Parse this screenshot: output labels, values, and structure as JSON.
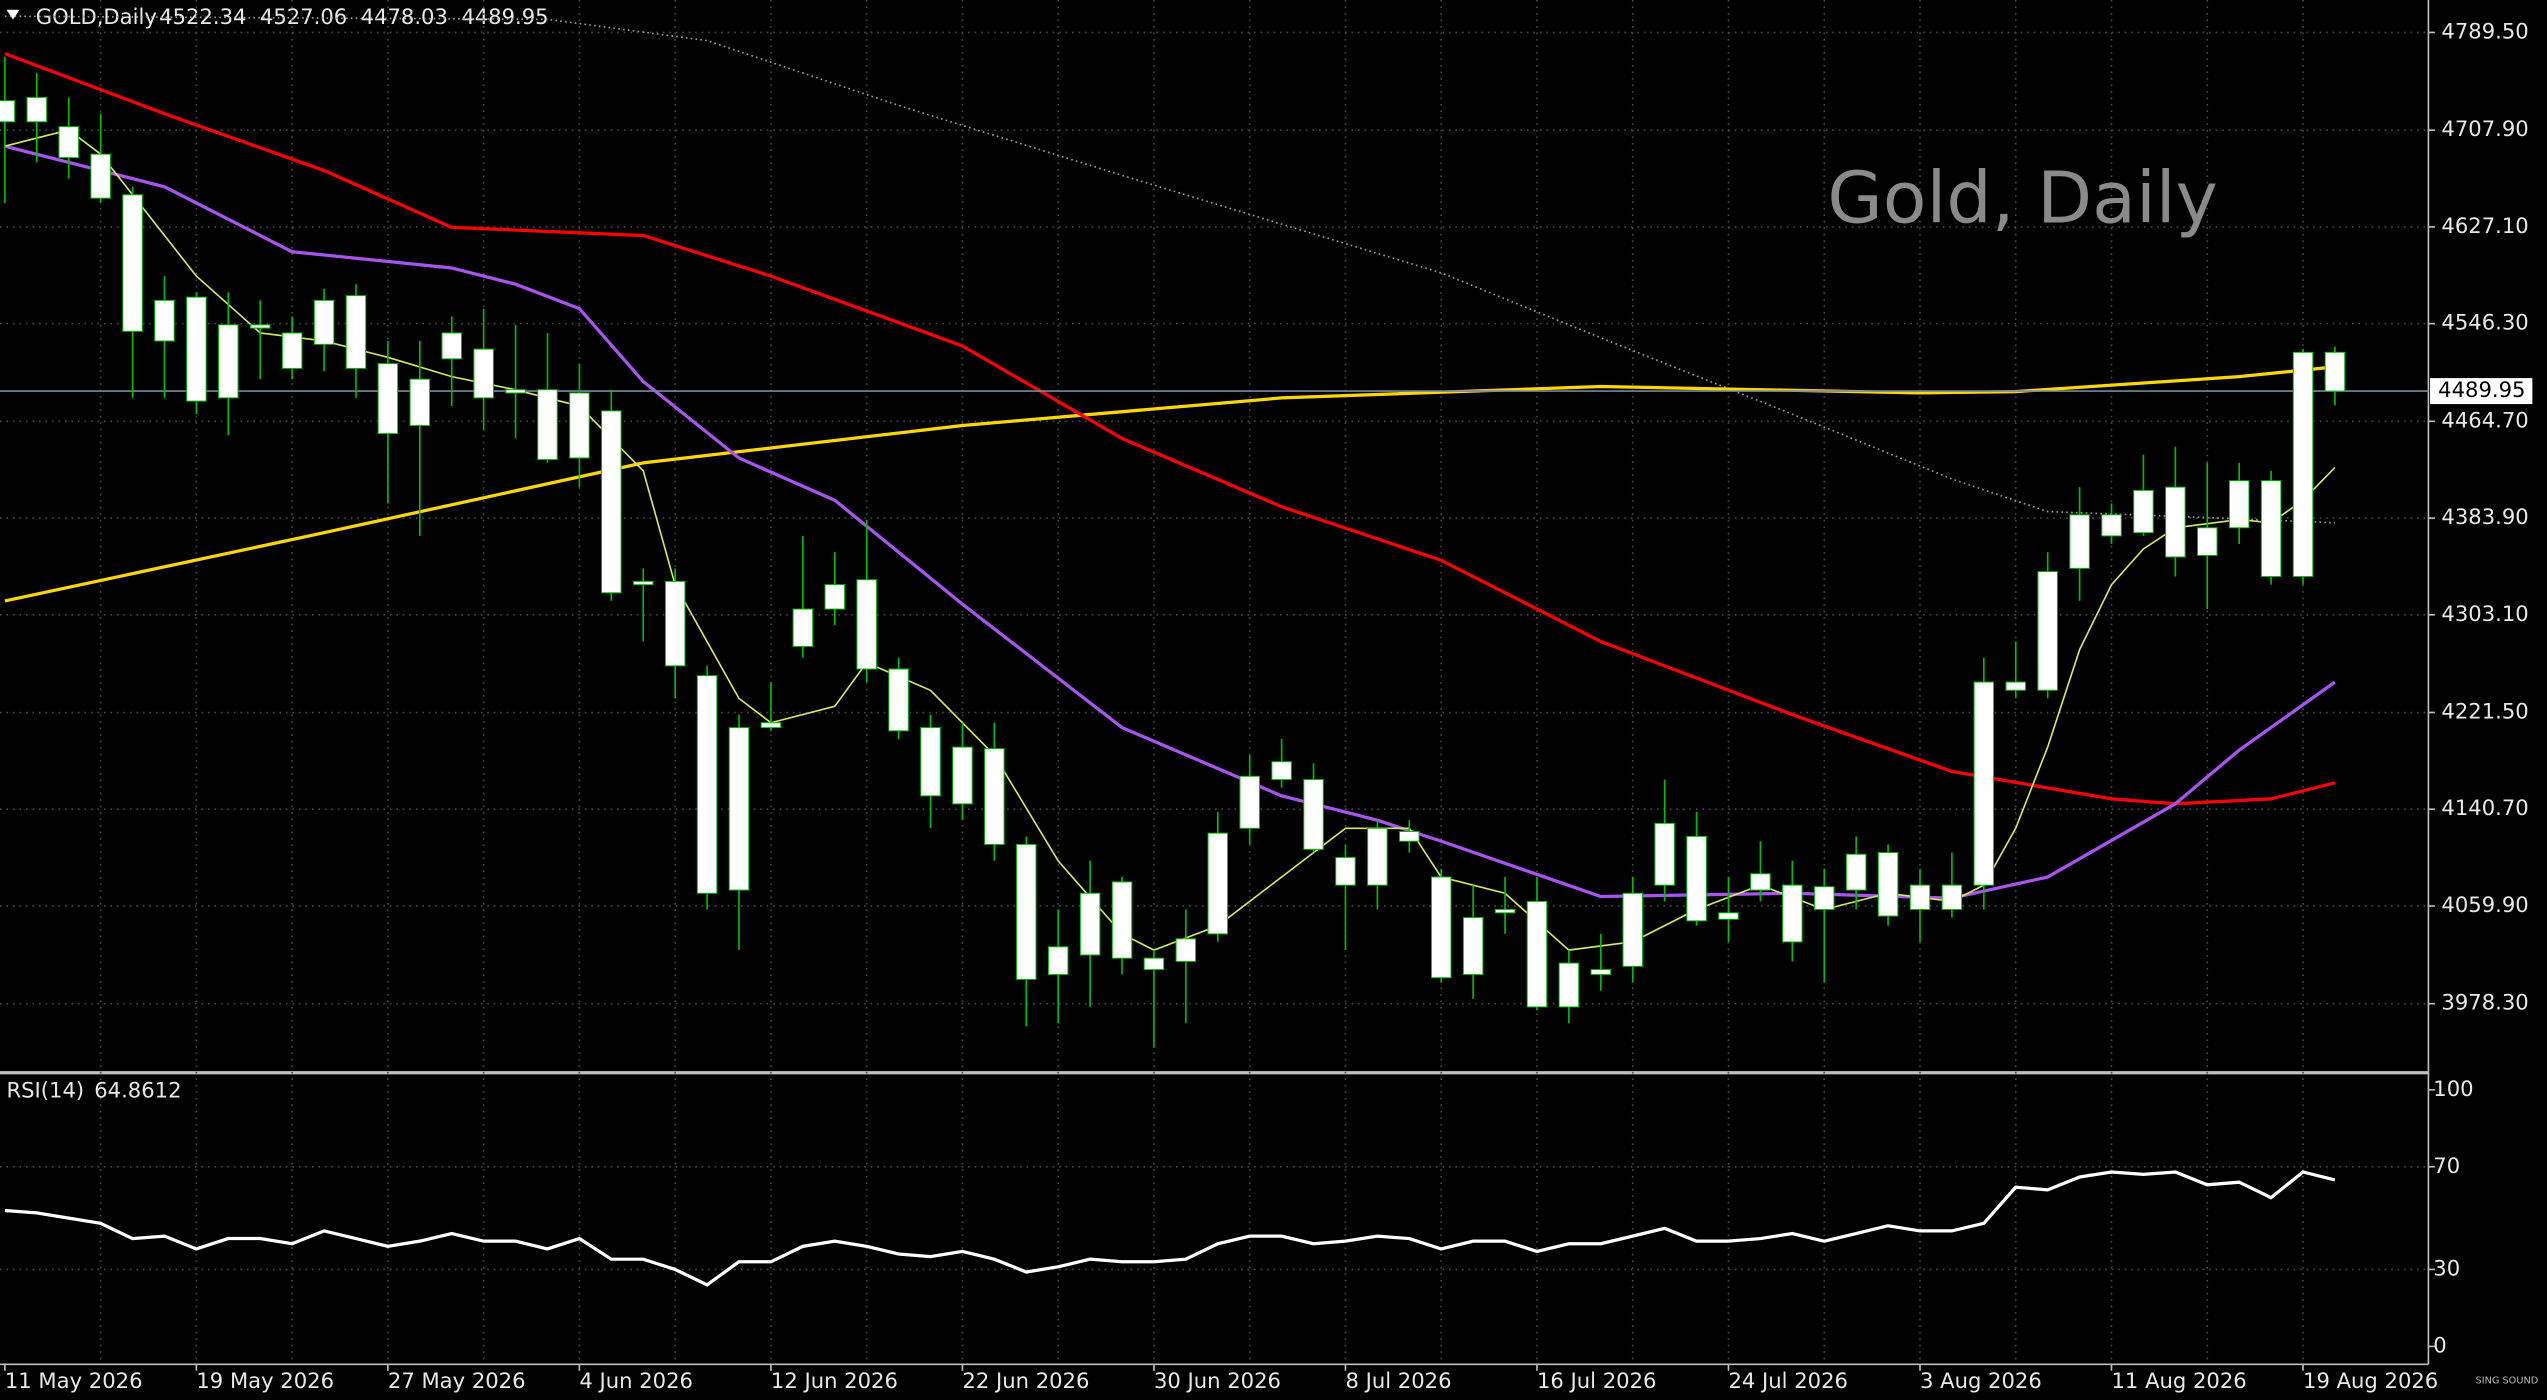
{
  "chart_data": {
    "type": "candlestick",
    "symbol": "GOLD,Daily",
    "watermark": "Gold, Daily",
    "logo": "SING SOUND",
    "categories": [
      "11 May 2026",
      null,
      null,
      null,
      null,
      null,
      "19 May 2026",
      null,
      null,
      null,
      null,
      null,
      "27 May 2026",
      null,
      null,
      null,
      null,
      null,
      "4 Jun 2026",
      null,
      null,
      null,
      null,
      null,
      "12 Jun 2026",
      null,
      null,
      null,
      null,
      null,
      "22 Jun 2026",
      null,
      null,
      null,
      null,
      null,
      "30 Jun 2026",
      null,
      null,
      null,
      null,
      null,
      "8 Jul 2026",
      null,
      null,
      null,
      null,
      null,
      "16 Jul 2026",
      null,
      null,
      null,
      null,
      null,
      "24 Jul 2026",
      null,
      null,
      null,
      null,
      null,
      "3 Aug 2026",
      null,
      null,
      null,
      null,
      null,
      "11 Aug 2026",
      null,
      null,
      null,
      null,
      null,
      "19 Aug 2026",
      null
    ],
    "open": [
      4732.5,
      4735.2,
      4710.8,
      4687.8,
      4653.9,
      4531.8,
      4568.4,
      4484.3,
      4542.6,
      4538.5,
      4529.0,
      4569.7,
      4512.9,
      4461.2,
      4516.9,
      4525.0,
      4488.4,
      4491.1,
      4434.1,
      4473.4,
      4331.0,
      4331.0,
      4252.3,
      4073.2,
      4213.0,
      4276.7,
      4307.9,
      4332.4,
      4257.8,
      4208.9,
      4145.2,
      4191.3,
      4111.3,
      4002.7,
      4019.0,
      4080.0,
      4016.3,
      4013.6,
      4036.6,
      4124.8,
      4180.4,
      4165.5,
      4100.4,
      4077.3,
      4122.1,
      4084.1,
      4002.7,
      4054.2,
      4063.7,
      3975.6,
      4002.7,
      4009.5,
      4077.3,
      4118.0,
      4048.8,
      4073.2,
      4077.3,
      4057.0,
      4073.2,
      4104.5,
      4057.0,
      4057.0,
      4077.3,
      4246.9,
      4240.1,
      4341.9,
      4386.6,
      4371.7,
      4409.7,
      4352.7,
      4375.8,
      4415.1,
      4335.1,
      4522.34
    ],
    "high": [
      4769.2,
      4755.6,
      4735.2,
      4721.7,
      4660.6,
      4586.0,
      4572.5,
      4572.5,
      4565.7,
      4552.1,
      4575.2,
      4579.2,
      4531.8,
      4531.8,
      4552.1,
      4558.9,
      4545.3,
      4538.5,
      4512.9,
      4491.1,
      4341.9,
      4341.9,
      4260.5,
      4219.8,
      4246.9,
      4369.0,
      4355.4,
      4382.6,
      4267.3,
      4219.8,
      4213.0,
      4213.0,
      4118.0,
      4057.0,
      4097.7,
      4084.1,
      4023.1,
      4057.0,
      4138.4,
      4185.9,
      4199.4,
      4179.1,
      4111.3,
      4131.6,
      4131.6,
      4090.9,
      4077.3,
      4084.1,
      4084.1,
      4023.1,
      4036.6,
      4084.1,
      4165.5,
      4138.4,
      4084.1,
      4114.0,
      4097.7,
      4090.9,
      4118.0,
      4111.3,
      4090.9,
      4104.5,
      4267.3,
      4280.8,
      4355.4,
      4409.7,
      4396.1,
      4436.8,
      4443.6,
      4430.0,
      4430.0,
      4423.3,
      4525.0,
      4527.06
    ],
    "low": [
      4647.1,
      4681.0,
      4667.4,
      4647.1,
      4484.3,
      4484.3,
      4470.7,
      4453.1,
      4499.9,
      4499.9,
      4506.6,
      4484.3,
      4396.1,
      4369.0,
      4477.5,
      4457.2,
      4450.4,
      4430.0,
      4409.7,
      4314.7,
      4280.8,
      4233.3,
      4057.0,
      4023.1,
      4206.2,
      4267.3,
      4294.4,
      4246.9,
      4199.4,
      4124.8,
      4131.6,
      4097.7,
      3959.3,
      3962.0,
      3975.6,
      4002.7,
      3941.6,
      3962.0,
      4029.9,
      4111.3,
      4158.7,
      4104.5,
      4023.1,
      4057.0,
      4104.5,
      3995.9,
      3982.3,
      4036.6,
      3972.8,
      3962.0,
      3989.2,
      3995.9,
      4063.7,
      4043.4,
      4029.9,
      4063.7,
      4013.6,
      3995.9,
      4057.0,
      4043.4,
      4029.9,
      4050.2,
      4057.0,
      4233.3,
      4233.3,
      4314.7,
      4362.2,
      4369.0,
      4335.1,
      4307.9,
      4362.2,
      4328.3,
      4328.3,
      4478.03
    ],
    "close": [
      4714.9,
      4714.9,
      4685.0,
      4651.1,
      4539.9,
      4565.7,
      4481.6,
      4545.3,
      4545.3,
      4508.9,
      4565.7,
      4508.9,
      4454.5,
      4499.9,
      4538.5,
      4484.3,
      4491.1,
      4432.8,
      4488.4,
      4321.5,
      4328.3,
      4260.5,
      4070.5,
      4208.9,
      4208.9,
      4307.9,
      4328.3,
      4257.8,
      4206.2,
      4151.9,
      4192.6,
      4111.3,
      3998.6,
      4025.8,
      4070.5,
      4016.3,
      4006.8,
      4032.5,
      4120.7,
      4168.2,
      4165.5,
      4107.2,
      4077.3,
      4124.8,
      4114.0,
      4000.0,
      4050.2,
      4057.0,
      3975.6,
      4012.2,
      4006.8,
      4070.5,
      4128.9,
      4047.5,
      4054.2,
      4086.8,
      4029.9,
      4076.0,
      4103.1,
      4051.5,
      4077.3,
      4077.3,
      4246.9,
      4240.1,
      4339.2,
      4386.6,
      4369.0,
      4407.0,
      4351.4,
      4375.8,
      4415.1,
      4335.1,
      4522.3,
      4489.95
    ],
    "candle_color": "#ffffff",
    "wick_color": "#00c000",
    "price_line_color": "#778899",
    "ylim": [
      3921.3,
      4816.6
    ],
    "yticks": [
      {
        "value": 4789.5,
        "label": "4789.50"
      },
      {
        "value": 4707.9,
        "label": "4707.90"
      },
      {
        "value": 4627.1,
        "label": "4627.10"
      },
      {
        "value": 4546.3,
        "label": "4546.30"
      },
      {
        "value": 4464.7,
        "label": "4464.70"
      },
      {
        "value": 4383.9,
        "label": "4383.90"
      },
      {
        "value": 4303.1,
        "label": "4303.10"
      },
      {
        "value": 4221.5,
        "label": "4221.50"
      },
      {
        "value": 4140.7,
        "label": "4140.70"
      },
      {
        "value": 4059.9,
        "label": "4059.90"
      },
      {
        "value": 3978.3,
        "label": "3978.30"
      }
    ],
    "grid": true,
    "overlays": [
      {
        "color": "#a0a0a0",
        "width": 1,
        "dashed": true,
        "x": [
          0,
          17,
          22,
          28,
          35,
          45,
          50,
          56,
          61,
          64,
          68,
          73
        ],
        "values": [
          4803.1,
          4800.4,
          4782.7,
          4728.5,
          4670.1,
          4588.7,
          4534.5,
          4470.7,
          4416.5,
          4389.3,
          4385.3,
          4379.9
        ]
      },
      {
        "color": "#ffd700",
        "width": 2,
        "dashed": false,
        "x": [
          0,
          10,
          20,
          30,
          40,
          50,
          60,
          63,
          70,
          73
        ],
        "values": [
          4314.7,
          4371.7,
          4430.0,
          4461.2,
          4484.3,
          4493.8,
          4488.4,
          4489.5,
          4502.0,
          4510.1
        ]
      },
      {
        "color": "#ff0000",
        "width": 2,
        "dashed": false,
        "x": [
          0,
          5,
          10,
          14,
          20,
          24,
          30,
          35,
          40,
          45,
          50,
          56,
          61,
          66,
          68,
          71,
          73
        ],
        "values": [
          4771.9,
          4721.7,
          4674.2,
          4626.7,
          4619.9,
          4586.0,
          4527.7,
          4450.4,
          4393.4,
          4348.6,
          4280.8,
          4219.8,
          4172.3,
          4149.3,
          4145.2,
          4149.3,
          4162.8
        ]
      },
      {
        "color": "#a855f0",
        "width": 2,
        "dashed": false,
        "x": [
          0,
          5,
          9,
          14,
          16,
          18,
          20,
          23,
          26,
          30,
          35,
          40,
          43,
          45,
          50,
          56,
          61,
          64,
          68,
          70,
          73
        ],
        "values": [
          4694.5,
          4660.6,
          4606.4,
          4592.8,
          4579.2,
          4558.9,
          4497.9,
          4434.1,
          4398.8,
          4312.0,
          4208.9,
          4151.9,
          4131.6,
          4114.0,
          4067.8,
          4070.5,
          4066.5,
          4084.1,
          4145.2,
          4190.0,
          4246.9
        ]
      },
      {
        "color": "#d4ec5a",
        "width": 1,
        "dashed": false,
        "x": [
          0,
          2,
          3,
          4,
          6,
          8,
          10,
          12,
          14,
          16,
          18,
          20,
          21,
          23,
          24,
          26,
          27,
          29,
          31,
          33,
          35,
          36,
          38,
          40,
          42,
          44,
          45,
          47,
          49,
          51,
          53,
          55,
          57,
          59,
          61,
          62,
          63,
          64,
          65,
          66,
          67,
          68,
          70,
          71,
          72,
          73
        ],
        "values": [
          4694.5,
          4708.1,
          4687.8,
          4653.9,
          4586.0,
          4538.5,
          4531.8,
          4518.2,
          4502.0,
          4491.1,
          4477.5,
          4423.3,
          4328.3,
          4233.3,
          4213.0,
          4226.6,
          4263.2,
          4240.1,
          4185.9,
          4097.7,
          4036.6,
          4023.1,
          4043.4,
          4084.1,
          4124.8,
          4124.8,
          4084.1,
          4070.5,
          4023.1,
          4029.9,
          4057.0,
          4077.3,
          4057.0,
          4070.5,
          4063.7,
          4077.3,
          4124.8,
          4192.6,
          4274.1,
          4328.3,
          4358.1,
          4375.8,
          4382.6,
          4379.9,
          4398.8,
          4426.0
        ]
      }
    ],
    "rsi": {
      "label": "RSI(14)",
      "color": "#ffffff",
      "ylim": [
        0,
        100
      ],
      "yticks": [
        100,
        70,
        30,
        0
      ],
      "values": [
        53,
        52,
        50,
        48,
        42,
        43,
        38,
        42,
        42,
        40,
        45,
        42,
        39,
        41,
        44,
        41,
        41,
        38,
        42,
        34,
        34,
        30,
        24,
        33,
        33,
        39,
        41,
        39,
        36,
        35,
        37,
        34,
        29,
        31,
        34,
        33,
        33,
        34,
        40,
        43,
        43,
        40,
        41,
        43,
        42,
        38,
        41,
        41,
        37,
        40,
        40,
        43,
        46,
        41,
        41,
        42,
        44,
        41,
        44,
        47,
        45,
        45,
        48,
        62,
        61,
        66,
        68,
        67,
        68,
        63,
        64,
        58,
        68,
        64.8612
      ]
    }
  }
}
